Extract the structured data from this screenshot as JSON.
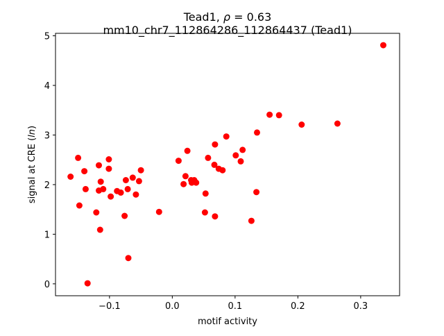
{
  "chart_data": {
    "type": "scatter",
    "title_line1_prefix": "Tead1, ",
    "title_rho_symbol": "ρ",
    "title_rho_value": " = 0.63",
    "title_line2": "mm10_chr7_112864286_112864437 (Tead1)",
    "xlabel": "motif activity",
    "ylabel_prefix": "signal at CRE (",
    "ylabel_italic": "ln",
    "ylabel_suffix": ")",
    "xlim": [
      -0.186,
      0.362
    ],
    "ylim": [
      -0.24,
      5.05
    ],
    "x_ticks": [
      {
        "value": -0.1,
        "label": "−0.1"
      },
      {
        "value": 0.0,
        "label": "0.0"
      },
      {
        "value": 0.1,
        "label": "0.1"
      },
      {
        "value": 0.2,
        "label": "0.2"
      },
      {
        "value": 0.3,
        "label": "0.3"
      }
    ],
    "y_ticks": [
      {
        "value": 0,
        "label": "0"
      },
      {
        "value": 1,
        "label": "1"
      },
      {
        "value": 2,
        "label": "2"
      },
      {
        "value": 3,
        "label": "3"
      },
      {
        "value": 4,
        "label": "4"
      },
      {
        "value": 5,
        "label": "5"
      }
    ],
    "grid": false,
    "marker_color": "#ff0000",
    "points": [
      {
        "x": -0.162,
        "y": 2.16
      },
      {
        "x": -0.15,
        "y": 2.54
      },
      {
        "x": -0.148,
        "y": 1.58
      },
      {
        "x": -0.14,
        "y": 2.27
      },
      {
        "x": -0.138,
        "y": 1.91
      },
      {
        "x": -0.135,
        "y": 0.01
      },
      {
        "x": -0.121,
        "y": 1.44
      },
      {
        "x": -0.117,
        "y": 2.39
      },
      {
        "x": -0.117,
        "y": 1.88
      },
      {
        "x": -0.115,
        "y": 1.09
      },
      {
        "x": -0.114,
        "y": 2.06
      },
      {
        "x": -0.11,
        "y": 1.91
      },
      {
        "x": -0.101,
        "y": 2.51
      },
      {
        "x": -0.101,
        "y": 2.32
      },
      {
        "x": -0.098,
        "y": 1.76
      },
      {
        "x": -0.088,
        "y": 1.87
      },
      {
        "x": -0.082,
        "y": 1.84
      },
      {
        "x": -0.076,
        "y": 1.37
      },
      {
        "x": -0.074,
        "y": 2.09
      },
      {
        "x": -0.071,
        "y": 1.91
      },
      {
        "x": -0.07,
        "y": 0.52
      },
      {
        "x": -0.063,
        "y": 2.14
      },
      {
        "x": -0.058,
        "y": 1.8
      },
      {
        "x": -0.053,
        "y": 2.07
      },
      {
        "x": -0.05,
        "y": 2.29
      },
      {
        "x": -0.021,
        "y": 1.45
      },
      {
        "x": 0.01,
        "y": 2.48
      },
      {
        "x": 0.018,
        "y": 2.01
      },
      {
        "x": 0.021,
        "y": 2.17
      },
      {
        "x": 0.024,
        "y": 2.68
      },
      {
        "x": 0.03,
        "y": 2.09
      },
      {
        "x": 0.031,
        "y": 2.04
      },
      {
        "x": 0.035,
        "y": 2.09
      },
      {
        "x": 0.038,
        "y": 2.04
      },
      {
        "x": 0.052,
        "y": 1.44
      },
      {
        "x": 0.053,
        "y": 1.82
      },
      {
        "x": 0.057,
        "y": 2.54
      },
      {
        "x": 0.067,
        "y": 2.4
      },
      {
        "x": 0.068,
        "y": 1.36
      },
      {
        "x": 0.068,
        "y": 2.81
      },
      {
        "x": 0.074,
        "y": 2.32
      },
      {
        "x": 0.08,
        "y": 2.29
      },
      {
        "x": 0.086,
        "y": 2.97
      },
      {
        "x": 0.101,
        "y": 2.59
      },
      {
        "x": 0.109,
        "y": 2.47
      },
      {
        "x": 0.112,
        "y": 2.7
      },
      {
        "x": 0.126,
        "y": 1.27
      },
      {
        "x": 0.134,
        "y": 1.85
      },
      {
        "x": 0.135,
        "y": 3.05
      },
      {
        "x": 0.155,
        "y": 3.41
      },
      {
        "x": 0.17,
        "y": 3.4
      },
      {
        "x": 0.206,
        "y": 3.21
      },
      {
        "x": 0.263,
        "y": 3.23
      },
      {
        "x": 0.336,
        "y": 4.81
      }
    ]
  }
}
